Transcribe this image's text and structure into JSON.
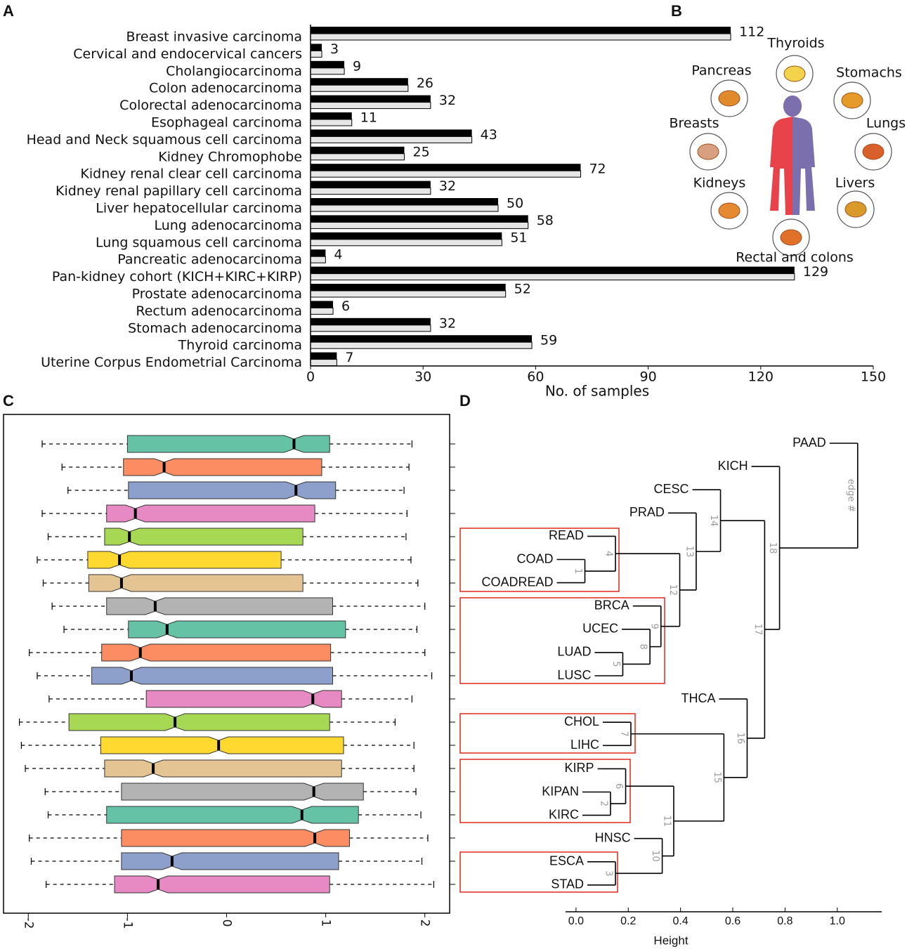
{
  "chart_data": [
    {
      "type": "bar",
      "panel": "A",
      "categories": [
        "Breast invasive carcinoma",
        "Cervical and endocervical cancers",
        "Cholangiocarcinoma",
        "Colon adenocarcinoma",
        "Colorectal adenocarcinoma",
        "Esophageal carcinoma",
        "Head and Neck squamous cell carcinoma",
        "Kidney Chromophobe",
        "Kidney renal clear cell carcinoma",
        "Kidney renal papillary cell carcinoma",
        "Liver hepatocellular carcinoma",
        "Lung adenocarcinoma",
        "Lung squamous cell carcinoma",
        "Pancreatic adenocarcinoma",
        "Pan-kidney cohort (KICH+KIRC+KIRP)",
        "Prostate adenocarcinoma",
        "Rectum adenocarcinoma",
        "Stomach adenocarcinoma",
        "Thyroid carcinoma",
        "Uterine Corpus Endometrial Carcinoma"
      ],
      "values": [
        112,
        3,
        9,
        26,
        32,
        11,
        43,
        25,
        72,
        32,
        50,
        58,
        51,
        4,
        129,
        52,
        6,
        32,
        59,
        7
      ],
      "bar_colors": [
        "#000000",
        "#e6e6e6"
      ],
      "xlim": [
        0,
        150
      ],
      "xticks": [
        0,
        30,
        60,
        90,
        120,
        150
      ],
      "xlabel": "No. of samples"
    },
    {
      "type": "box",
      "panel": "C",
      "boxes": [
        {
          "low": -1.86,
          "q1": -1.0,
          "median": 0.68,
          "q3": 1.04,
          "high": 1.87
        },
        {
          "low": -1.66,
          "q1": -1.04,
          "median": -0.63,
          "q3": 0.96,
          "high": 1.84
        },
        {
          "low": -1.6,
          "q1": -0.99,
          "median": 0.7,
          "q3": 1.1,
          "high": 1.79
        },
        {
          "low": -1.86,
          "q1": -1.21,
          "median": -0.92,
          "q3": 0.89,
          "high": 1.82
        },
        {
          "low": -1.8,
          "q1": -1.23,
          "median": -0.98,
          "q3": 0.77,
          "high": 1.81
        },
        {
          "low": -1.91,
          "q1": -1.4,
          "median": -1.08,
          "q3": 0.55,
          "high": 1.86
        },
        {
          "low": -1.85,
          "q1": -1.39,
          "median": -1.06,
          "q3": 0.77,
          "high": 1.93
        },
        {
          "low": -1.76,
          "q1": -1.21,
          "median": -0.72,
          "q3": 1.07,
          "high": 2.0
        },
        {
          "low": -1.64,
          "q1": -0.99,
          "median": -0.6,
          "q3": 1.2,
          "high": 1.92
        },
        {
          "low": -1.99,
          "q1": -1.26,
          "median": -0.87,
          "q3": 1.05,
          "high": 2.0
        },
        {
          "low": -1.91,
          "q1": -1.36,
          "median": -0.96,
          "q3": 1.07,
          "high": 2.07
        },
        {
          "low": -1.79,
          "q1": -0.81,
          "median": 0.87,
          "q3": 1.16,
          "high": 1.87
        },
        {
          "low": -2.09,
          "q1": -1.59,
          "median": -0.52,
          "q3": 1.04,
          "high": 1.7
        },
        {
          "low": -2.07,
          "q1": -1.27,
          "median": -0.08,
          "q3": 1.18,
          "high": 1.89
        },
        {
          "low": -2.03,
          "q1": -1.23,
          "median": -0.74,
          "q3": 1.16,
          "high": 1.89
        },
        {
          "low": -1.83,
          "q1": -1.06,
          "median": 0.88,
          "q3": 1.38,
          "high": 1.91
        },
        {
          "low": -1.8,
          "q1": -1.21,
          "median": 0.76,
          "q3": 1.33,
          "high": 1.96
        },
        {
          "low": -1.99,
          "q1": -1.06,
          "median": 0.89,
          "q3": 1.24,
          "high": 2.03
        },
        {
          "low": -1.97,
          "q1": -1.06,
          "median": -0.55,
          "q3": 1.13,
          "high": 1.97
        },
        {
          "low": -1.82,
          "q1": -1.13,
          "median": -0.69,
          "q3": 1.04,
          "high": 2.09
        }
      ],
      "colors": [
        "#66c2a5",
        "#fc8d62",
        "#8da0cb",
        "#e78ac3",
        "#a6d854",
        "#ffd92f",
        "#e5c494",
        "#b3b3b3"
      ],
      "xlim": [
        -2.25,
        2.25
      ],
      "xticks": [
        -2,
        -1,
        0,
        1,
        2
      ]
    },
    {
      "type": "dendrogram",
      "panel": "D",
      "leaves": [
        "PAAD",
        "KICH",
        "CESC",
        "PRAD",
        "READ",
        "COAD",
        "COADREAD",
        "BRCA",
        "UCEC",
        "LUAD",
        "LUSC",
        "THCA",
        "CHOL",
        "LIHC",
        "KIRP",
        "KIPAN",
        "KIRC",
        "HNSC",
        "ESCA",
        "STAD"
      ],
      "merge": [
        [
          -6,
          -7
        ],
        [
          -16,
          -17
        ],
        [
          -19,
          -20
        ],
        [
          -5,
          1
        ],
        [
          -10,
          -11
        ],
        [
          -15,
          2
        ],
        [
          -13,
          -14
        ],
        [
          -9,
          5
        ],
        [
          -8,
          8
        ],
        [
          -18,
          3
        ],
        [
          6,
          10
        ],
        [
          4,
          9
        ],
        [
          -4,
          12
        ],
        [
          -3,
          13
        ],
        [
          7,
          11
        ],
        [
          -12,
          15
        ],
        [
          14,
          16
        ],
        [
          -2,
          17
        ],
        [
          -1,
          18
        ]
      ],
      "heights": [
        0.034,
        0.132,
        0.151,
        0.151,
        0.179,
        0.19,
        0.21,
        0.283,
        0.325,
        0.33,
        0.374,
        0.397,
        0.46,
        0.553,
        0.566,
        0.655,
        0.722,
        0.779,
        1.078
      ],
      "edge_labels": [
        "1",
        "2",
        "3",
        "4",
        "5",
        "6",
        "7",
        "8",
        "9",
        "10",
        "11",
        "12",
        "13",
        "14",
        "15",
        "16",
        "17",
        "18",
        "edge #"
      ],
      "xlim": [
        -0.04,
        1.17
      ],
      "xticks": [
        {
          "value": 0,
          "label": "0.0"
        },
        {
          "value": 0.2,
          "label": "0.2"
        },
        {
          "value": 0.4,
          "label": "0.4"
        },
        {
          "value": 0.6,
          "label": "0.6"
        },
        {
          "value": 0.8,
          "label": "0.8"
        },
        {
          "value": 1,
          "label": "1.0"
        }
      ],
      "xlabel": "Height"
    }
  ],
  "body_diagram": {
    "panel": "B",
    "organs": [
      "Thyroids",
      "Pancreas",
      "Stomachs",
      "Breasts",
      "Lungs",
      "Kidneys",
      "Livers",
      "Rectal and colons"
    ]
  }
}
